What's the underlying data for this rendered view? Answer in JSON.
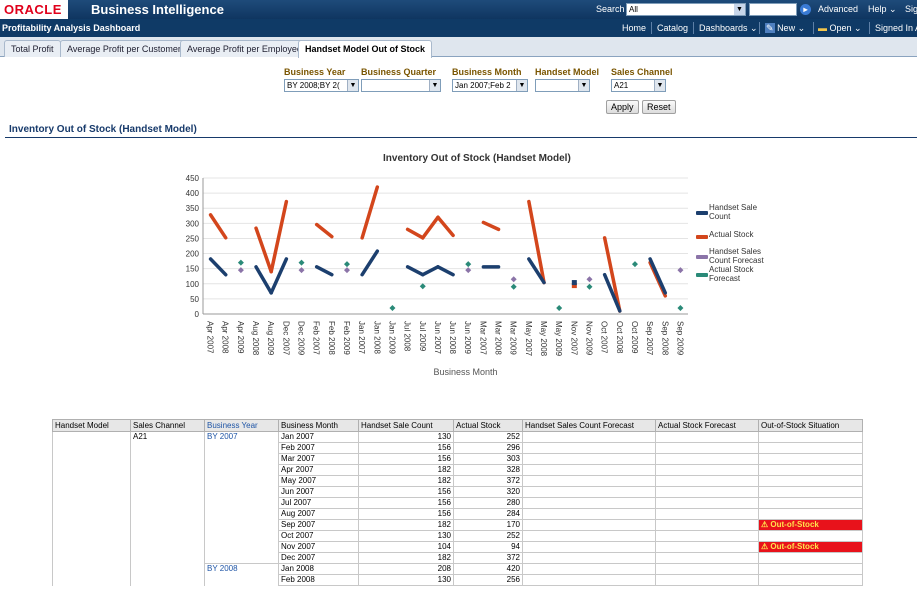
{
  "app": {
    "logo": "ORACLE",
    "title": "Business Intelligence",
    "search_label": "Search",
    "search_scope": "All",
    "links": [
      "Advanced",
      "Help ⌄",
      "Sig"
    ]
  },
  "dashbar": {
    "title": "Profitability Analysis Dashboard",
    "links": [
      "Home",
      "Catalog",
      "Dashboards ⌄",
      "New ⌄",
      "Open ⌄",
      "Signed In A"
    ]
  },
  "tabs": [
    "Total Profit",
    "Average Profit per Customer",
    "Average Profit per Employee",
    "Handset Model Out of Stock"
  ],
  "prompts": [
    {
      "label": "Business Year",
      "value": "BY 2008;BY 2("
    },
    {
      "label": "Business Quarter",
      "value": ""
    },
    {
      "label": "Business Month",
      "value": "Jan 2007;Feb 2"
    },
    {
      "label": "Handset Model",
      "value": ""
    },
    {
      "label": "Sales Channel",
      "value": "A21"
    }
  ],
  "buttons": {
    "apply": "Apply",
    "reset": "Reset"
  },
  "section_title": "Inventory Out of Stock (Handset Model)",
  "colors": {
    "sale": "#1c3f6e",
    "actual": "#d3461c",
    "sale_fc": "#8b74a8",
    "actual_fc": "#2a8a78"
  },
  "chart_data": {
    "type": "line",
    "title": "Inventory Out of Stock (Handset Model)",
    "xlabel": "Business Month",
    "ylabel": "",
    "ylim": [
      0,
      450
    ],
    "yticks": [
      0,
      50,
      100,
      150,
      200,
      250,
      300,
      350,
      400,
      450
    ],
    "categories": [
      "Apr 2007",
      "Apr 2008",
      "Apr 2009",
      "Aug 2008",
      "Aug 2009",
      "Dec 2007",
      "Dec 2009",
      "Feb 2007",
      "Feb 2008",
      "Feb 2009",
      "Jan 2007",
      "Jan 2008",
      "Jan 2009",
      "Jul 2008",
      "Jul 2009",
      "Jun 2007",
      "Jun 2008",
      "Jun 2009",
      "Mar 2007",
      "Mar 2008",
      "Mar 2009",
      "May 2007",
      "May 2008",
      "May 2009",
      "Nov 2007",
      "Nov 2009",
      "Oct 2007",
      "Oct 2008",
      "Oct 2009",
      "Sep 2007",
      "Sep 2008",
      "Sep 2009"
    ],
    "legend": [
      "Handset Sale Count",
      "Actual Stock",
      "Handset Sales Count Forecast",
      "Actual Stock Forecast"
    ],
    "legend_position": "right",
    "series": [
      {
        "name": "Handset Sale Count",
        "values": [
          182,
          130,
          null,
          156,
          70,
          182,
          null,
          156,
          130,
          null,
          130,
          208,
          null,
          156,
          130,
          156,
          130,
          null,
          156,
          156,
          null,
          182,
          104,
          null,
          104,
          null,
          130,
          10,
          null,
          182,
          70,
          null
        ]
      },
      {
        "name": "Actual Stock",
        "values": [
          328,
          252,
          null,
          284,
          140,
          372,
          null,
          296,
          256,
          null,
          252,
          420,
          null,
          280,
          252,
          320,
          260,
          null,
          303,
          280,
          null,
          372,
          104,
          null,
          94,
          null,
          252,
          10,
          null,
          170,
          60,
          null
        ]
      },
      {
        "name": "Handset Sales Count Forecast",
        "values": [
          null,
          null,
          145,
          null,
          null,
          null,
          145,
          null,
          null,
          145,
          null,
          null,
          null,
          null,
          null,
          null,
          null,
          145,
          null,
          null,
          115,
          null,
          null,
          null,
          null,
          115,
          null,
          null,
          null,
          null,
          null,
          145
        ]
      },
      {
        "name": "Actual Stock Forecast",
        "values": [
          null,
          null,
          170,
          null,
          null,
          null,
          170,
          null,
          null,
          165,
          null,
          null,
          20,
          null,
          92,
          null,
          null,
          165,
          null,
          null,
          90,
          null,
          null,
          20,
          null,
          90,
          null,
          null,
          165,
          null,
          null,
          20
        ]
      }
    ]
  },
  "table": {
    "headers": [
      "Handset Model",
      "Sales Channel",
      "Business Year",
      "Business Month",
      "Handset Sale Count",
      "Actual Stock",
      "Handset Sales Count Forecast",
      "Actual Stock Forecast",
      "Out-of-Stock Situation"
    ],
    "rows": [
      {
        "model": "",
        "channel": "A21",
        "year": "BY 2007",
        "month": "Jan 2007",
        "sale": "130",
        "actual": "252",
        "sfc": "",
        "afc": "",
        "oos": ""
      },
      {
        "model": "",
        "channel": "",
        "year": "",
        "month": "Feb 2007",
        "sale": "156",
        "actual": "296",
        "sfc": "",
        "afc": "",
        "oos": ""
      },
      {
        "model": "",
        "channel": "",
        "year": "",
        "month": "Mar 2007",
        "sale": "156",
        "actual": "303",
        "sfc": "",
        "afc": "",
        "oos": ""
      },
      {
        "model": "",
        "channel": "",
        "year": "",
        "month": "Apr 2007",
        "sale": "182",
        "actual": "328",
        "sfc": "",
        "afc": "",
        "oos": ""
      },
      {
        "model": "",
        "channel": "",
        "year": "",
        "month": "May 2007",
        "sale": "182",
        "actual": "372",
        "sfc": "",
        "afc": "",
        "oos": ""
      },
      {
        "model": "",
        "channel": "",
        "year": "",
        "month": "Jun 2007",
        "sale": "156",
        "actual": "320",
        "sfc": "",
        "afc": "",
        "oos": ""
      },
      {
        "model": "",
        "channel": "",
        "year": "",
        "month": "Jul 2007",
        "sale": "156",
        "actual": "280",
        "sfc": "",
        "afc": "",
        "oos": ""
      },
      {
        "model": "",
        "channel": "",
        "year": "",
        "month": "Aug 2007",
        "sale": "156",
        "actual": "284",
        "sfc": "",
        "afc": "",
        "oos": ""
      },
      {
        "model": "",
        "channel": "",
        "year": "",
        "month": "Sep 2007",
        "sale": "182",
        "actual": "170",
        "sfc": "",
        "afc": "",
        "oos": "Out-of-Stock"
      },
      {
        "model": "",
        "channel": "",
        "year": "",
        "month": "Oct 2007",
        "sale": "130",
        "actual": "252",
        "sfc": "",
        "afc": "",
        "oos": ""
      },
      {
        "model": "",
        "channel": "",
        "year": "",
        "month": "Nov 2007",
        "sale": "104",
        "actual": "94",
        "sfc": "",
        "afc": "",
        "oos": "Out-of-Stock"
      },
      {
        "model": "",
        "channel": "",
        "year": "",
        "month": "Dec 2007",
        "sale": "182",
        "actual": "372",
        "sfc": "",
        "afc": "",
        "oos": ""
      },
      {
        "model": "",
        "channel": "",
        "year": "BY 2008",
        "month": "Jan 2008",
        "sale": "208",
        "actual": "420",
        "sfc": "",
        "afc": "",
        "oos": ""
      },
      {
        "model": "",
        "channel": "",
        "year": "",
        "month": "Feb 2008",
        "sale": "130",
        "actual": "256",
        "sfc": "",
        "afc": "",
        "oos": ""
      }
    ]
  }
}
